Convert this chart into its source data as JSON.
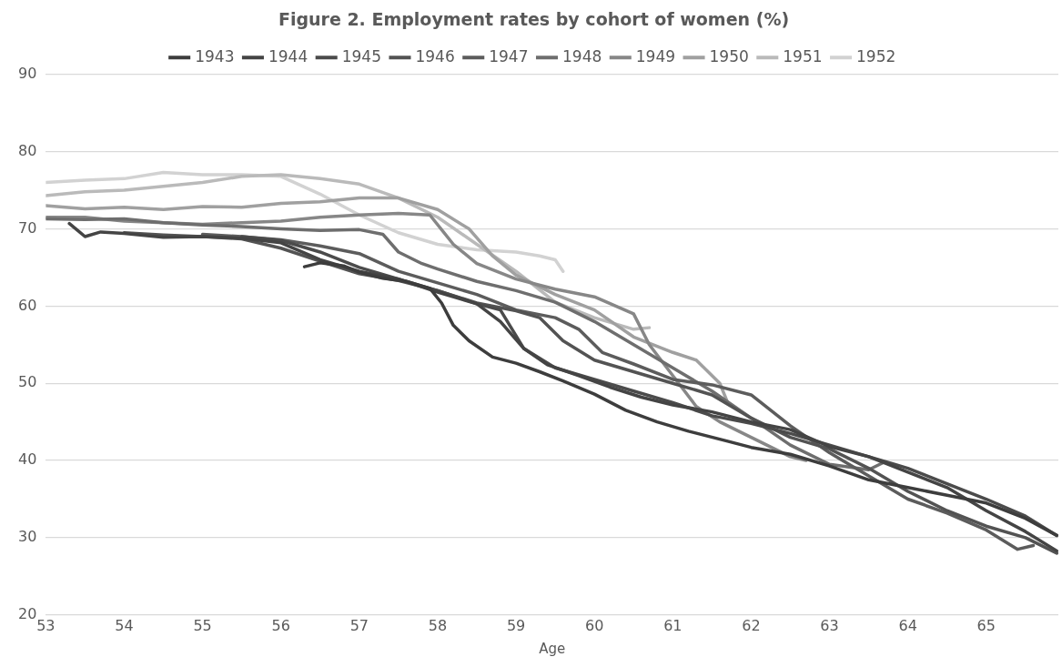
{
  "chart_data": {
    "type": "line",
    "title": "Figure 2. Employment rates by cohort of women (%)",
    "xlabel": "Age",
    "xlim": [
      53,
      65.92
    ],
    "xticks": [
      53,
      54,
      55,
      56,
      57,
      58,
      59,
      60,
      61,
      62,
      63,
      64,
      65
    ],
    "ylim": [
      20,
      90
    ],
    "yticks": [
      20,
      30,
      40,
      50,
      60,
      70,
      80,
      90
    ],
    "grid": "y",
    "legend": "top",
    "marker": "none",
    "line_style": "solid",
    "series": [
      {
        "name": "1943",
        "color": "#3d3d3d",
        "x": [
          56.3,
          56.5,
          56.8,
          57,
          57.3,
          57.6,
          57.9,
          58.05,
          58.2,
          58.4,
          58.7,
          59,
          59.3,
          59.6,
          60,
          60.4,
          60.8,
          61.2,
          61.7,
          62,
          62.5,
          63,
          63.5,
          64,
          64.5,
          65,
          65.5,
          65.9
        ],
        "values": [
          65.1,
          65.6,
          65.2,
          64.4,
          63.6,
          63.2,
          62.3,
          60.4,
          57.5,
          55.5,
          53.4,
          52.6,
          51.5,
          50.3,
          48.6,
          46.5,
          45,
          43.8,
          42.5,
          41.7,
          40.8,
          39.3,
          37.5,
          36.5,
          35.5,
          34.5,
          32.5,
          30.3
        ]
      },
      {
        "name": "1944",
        "color": "#444444",
        "x": [
          53.3,
          53.5,
          53.7,
          54,
          54.5,
          55,
          55.5,
          56,
          56.5,
          57,
          57.5,
          58,
          58.5,
          58.8,
          59.1,
          59.4,
          59.8,
          60.2,
          60.6,
          61,
          61.5,
          62,
          62.5,
          63,
          63.5,
          64,
          64.5,
          65,
          65.5,
          65.9
        ],
        "values": [
          70.7,
          69,
          69.6,
          69.4,
          68.9,
          69,
          68.8,
          68.2,
          66,
          64.5,
          63.5,
          61.8,
          60.3,
          58,
          54.5,
          52.4,
          51,
          49.5,
          48.2,
          47.2,
          46.3,
          45,
          44,
          41.8,
          40.5,
          38.5,
          36.5,
          33.5,
          30.8,
          28.3
        ]
      },
      {
        "name": "1945",
        "color": "#4b4b4b",
        "x": [
          55.5,
          56,
          56.5,
          57,
          57.5,
          58,
          58.5,
          58.8,
          59.1,
          59.5,
          60,
          60.5,
          61,
          61.5,
          62,
          62.5,
          63,
          63.5,
          64,
          64.5,
          65,
          65.5,
          65.9
        ],
        "values": [
          69,
          68.5,
          67,
          65,
          63.5,
          62,
          60.3,
          59.5,
          54.5,
          52,
          50.5,
          49,
          47.5,
          45.8,
          44.8,
          43.5,
          42,
          40.5,
          39,
          37,
          35,
          32.8,
          30.3
        ]
      },
      {
        "name": "1946",
        "color": "#535353",
        "x": [
          54,
          54.5,
          55,
          55.5,
          56,
          56.5,
          57,
          57.5,
          58,
          58.5,
          59,
          59.3,
          59.6,
          60,
          60.5,
          61,
          61.5,
          62,
          62.5,
          63,
          63.5,
          64,
          64.5,
          65,
          65.5,
          65.9
        ],
        "values": [
          69.5,
          69.2,
          69,
          68.7,
          67.5,
          65.8,
          64.2,
          63.3,
          62,
          60.4,
          59.4,
          58.5,
          55.5,
          53,
          51.5,
          50,
          48.5,
          45.5,
          43,
          41.5,
          39,
          36,
          33.5,
          31.5,
          30,
          28
        ]
      },
      {
        "name": "1947",
        "color": "#5c5c5c",
        "x": [
          55,
          55.5,
          56,
          56.5,
          57,
          57.5,
          58,
          58.5,
          59,
          59.5,
          59.8,
          60.1,
          60.5,
          61,
          61.5,
          62,
          62.5,
          63,
          63.5,
          64,
          64.5,
          65,
          65.4,
          65.6
        ],
        "values": [
          69.3,
          69,
          68.6,
          67.8,
          66.8,
          64.5,
          63,
          61.5,
          59.5,
          58.5,
          57,
          54,
          52.5,
          50.5,
          49.8,
          48.5,
          44.5,
          41,
          38,
          35,
          33.2,
          31,
          28.5,
          29
        ]
      },
      {
        "name": "1948",
        "color": "#6e6e6e",
        "x": [
          53,
          53.5,
          54,
          54.5,
          55,
          55.5,
          56,
          56.5,
          57,
          57.3,
          57.5,
          57.8,
          58,
          58.5,
          59,
          59.5,
          60,
          60.5,
          61,
          61.5,
          62,
          62.5,
          63,
          63.5,
          63.7
        ],
        "values": [
          71.3,
          71.2,
          71.3,
          70.8,
          70.5,
          70.3,
          70,
          69.8,
          69.9,
          69.3,
          67,
          65.5,
          64.8,
          63.2,
          62,
          60.5,
          58,
          55,
          52,
          49,
          45.5,
          42,
          39.5,
          38.8,
          39.8
        ]
      },
      {
        "name": "1949",
        "color": "#878787",
        "x": [
          53,
          53.5,
          54,
          54.5,
          55,
          55.5,
          56,
          56.5,
          57,
          57.5,
          57.9,
          58.2,
          58.5,
          59,
          59.5,
          60,
          60.5,
          60.7,
          61,
          61.3,
          61.6,
          62,
          62.5,
          62.7
        ],
        "values": [
          71.5,
          71.5,
          71,
          70.8,
          70.6,
          70.8,
          71,
          71.5,
          71.8,
          72,
          71.8,
          68,
          65.5,
          63.5,
          62.2,
          61.2,
          59,
          55,
          51,
          47,
          45,
          43,
          40.5,
          40
        ]
      },
      {
        "name": "1950",
        "color": "#a0a0a0",
        "x": [
          53,
          53.5,
          54,
          54.5,
          55,
          55.5,
          56,
          56.5,
          57,
          57.5,
          58,
          58.4,
          58.7,
          59,
          59.5,
          60,
          60.5,
          61,
          61.3,
          61.6,
          61.7
        ],
        "values": [
          73,
          72.6,
          72.8,
          72.5,
          72.9,
          72.8,
          73.3,
          73.5,
          74,
          74,
          72.5,
          70,
          66.5,
          64,
          61.5,
          59.5,
          56,
          54,
          53,
          50,
          47.5
        ]
      },
      {
        "name": "1951",
        "color": "#bababa",
        "x": [
          53,
          53.5,
          54,
          54.5,
          55,
          55.5,
          56,
          56.5,
          57,
          57.5,
          58,
          58.5,
          59,
          59.5,
          60,
          60.5,
          60.7
        ],
        "values": [
          74.3,
          74.8,
          75,
          75.5,
          76,
          76.8,
          77,
          76.5,
          75.8,
          74,
          71.5,
          68,
          64.5,
          60.5,
          58.5,
          57,
          57.2
        ]
      },
      {
        "name": "1952",
        "color": "#d2d2d2",
        "x": [
          53,
          53.5,
          54,
          54.5,
          55,
          55.5,
          56,
          56.5,
          57,
          57.5,
          58,
          58.5,
          59,
          59.3,
          59.5,
          59.6
        ],
        "values": [
          76,
          76.3,
          76.5,
          77.3,
          77,
          77,
          76.8,
          74.5,
          71.8,
          69.5,
          68,
          67.3,
          67,
          66.5,
          66,
          64.5
        ]
      }
    ]
  }
}
